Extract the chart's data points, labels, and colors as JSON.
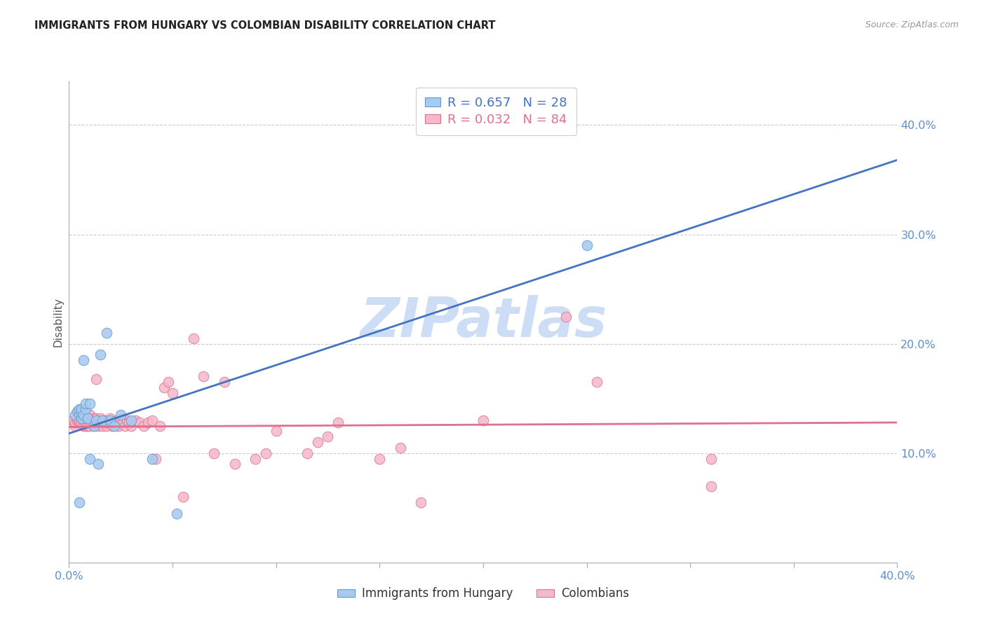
{
  "title": "IMMIGRANTS FROM HUNGARY VS COLOMBIAN DISABILITY CORRELATION CHART",
  "source": "Source: ZipAtlas.com",
  "ylabel": "Disability",
  "ytick_values": [
    0.1,
    0.2,
    0.3,
    0.4
  ],
  "ytick_labels": [
    "10.0%",
    "20.0%",
    "30.0%",
    "40.0%"
  ],
  "xlim": [
    0.0,
    0.4
  ],
  "ylim": [
    0.0,
    0.44
  ],
  "blue_r": "0.657",
  "blue_n": "28",
  "pink_r": "0.032",
  "pink_n": "84",
  "legend_label_blue": "Immigrants from Hungary",
  "legend_label_pink": "Colombians",
  "blue_fill": "#A8CAEE",
  "blue_edge": "#6699CC",
  "blue_line": "#4472C4",
  "pink_fill": "#F5B8C8",
  "pink_edge": "#E07090",
  "pink_line": "#E07090",
  "tick_color": "#5B8FD4",
  "grid_color": "#cccccc",
  "title_color": "#222222",
  "source_color": "#999999",
  "watermark_color": "#ccddf5",
  "blue_line_x0": 0.0,
  "blue_line_y0": 0.118,
  "blue_line_x1": 0.4,
  "blue_line_y1": 0.368,
  "pink_line_x0": 0.0,
  "pink_line_y0": 0.124,
  "pink_line_x1": 0.4,
  "pink_line_y1": 0.128,
  "blue_x": [
    0.003,
    0.004,
    0.005,
    0.005,
    0.005,
    0.006,
    0.006,
    0.006,
    0.007,
    0.007,
    0.008,
    0.008,
    0.009,
    0.01,
    0.01,
    0.012,
    0.013,
    0.014,
    0.015,
    0.016,
    0.018,
    0.02,
    0.022,
    0.025,
    0.03,
    0.04,
    0.052,
    0.25
  ],
  "blue_y": [
    0.135,
    0.138,
    0.136,
    0.14,
    0.055,
    0.132,
    0.137,
    0.14,
    0.185,
    0.135,
    0.14,
    0.145,
    0.132,
    0.095,
    0.145,
    0.125,
    0.13,
    0.09,
    0.19,
    0.13,
    0.21,
    0.13,
    0.125,
    0.135,
    0.13,
    0.095,
    0.045,
    0.29
  ],
  "pink_x": [
    0.002,
    0.003,
    0.003,
    0.004,
    0.004,
    0.005,
    0.005,
    0.005,
    0.006,
    0.006,
    0.006,
    0.007,
    0.007,
    0.007,
    0.008,
    0.008,
    0.008,
    0.009,
    0.009,
    0.009,
    0.01,
    0.01,
    0.01,
    0.011,
    0.011,
    0.012,
    0.012,
    0.012,
    0.013,
    0.013,
    0.014,
    0.014,
    0.015,
    0.015,
    0.015,
    0.016,
    0.017,
    0.017,
    0.018,
    0.018,
    0.019,
    0.02,
    0.02,
    0.021,
    0.022,
    0.023,
    0.024,
    0.025,
    0.026,
    0.027,
    0.028,
    0.029,
    0.03,
    0.032,
    0.034,
    0.036,
    0.038,
    0.04,
    0.042,
    0.044,
    0.046,
    0.048,
    0.05,
    0.055,
    0.06,
    0.065,
    0.07,
    0.075,
    0.08,
    0.09,
    0.095,
    0.1,
    0.115,
    0.12,
    0.125,
    0.13,
    0.15,
    0.16,
    0.17,
    0.2,
    0.24,
    0.255,
    0.31,
    0.31
  ],
  "pink_y": [
    0.13,
    0.125,
    0.128,
    0.13,
    0.132,
    0.128,
    0.13,
    0.135,
    0.128,
    0.132,
    0.14,
    0.13,
    0.125,
    0.135,
    0.125,
    0.13,
    0.128,
    0.13,
    0.125,
    0.132,
    0.128,
    0.125,
    0.135,
    0.13,
    0.128,
    0.125,
    0.128,
    0.132,
    0.168,
    0.132,
    0.13,
    0.125,
    0.128,
    0.13,
    0.132,
    0.125,
    0.128,
    0.13,
    0.125,
    0.128,
    0.13,
    0.128,
    0.132,
    0.125,
    0.128,
    0.13,
    0.125,
    0.132,
    0.128,
    0.125,
    0.13,
    0.128,
    0.125,
    0.13,
    0.128,
    0.125,
    0.128,
    0.13,
    0.095,
    0.125,
    0.16,
    0.165,
    0.155,
    0.06,
    0.205,
    0.17,
    0.1,
    0.165,
    0.09,
    0.095,
    0.1,
    0.12,
    0.1,
    0.11,
    0.115,
    0.128,
    0.095,
    0.105,
    0.055,
    0.13,
    0.225,
    0.165,
    0.095,
    0.07
  ]
}
